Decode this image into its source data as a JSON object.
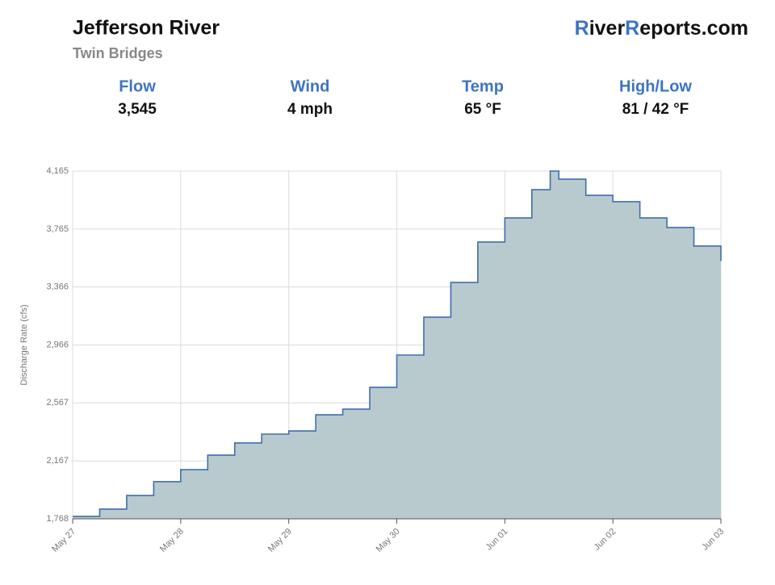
{
  "header": {
    "title": "Jefferson River",
    "subtitle": "Twin Bridges",
    "logo": [
      "R",
      "iver",
      "R",
      "eports.com"
    ]
  },
  "stats": [
    {
      "label": "Flow",
      "value": "3,545"
    },
    {
      "label": "Wind",
      "value": "4 mph"
    },
    {
      "label": "Temp",
      "value": "65 °F"
    },
    {
      "label": "High/Low",
      "value": "81 / 42 °F"
    }
  ],
  "chart_data": {
    "type": "line",
    "line_shape": "step",
    "y_label": "Discharge Rate (cfs)",
    "x": [
      0,
      0.25,
      0.5,
      0.75,
      1,
      1.25,
      1.5,
      1.75,
      2,
      2.25,
      2.5,
      2.75,
      3,
      3.25,
      3.5,
      3.75,
      4,
      4.25,
      4.42,
      4.5,
      4.75,
      5,
      5.25,
      5.5,
      5.75,
      6
    ],
    "series": [
      {
        "name": "Discharge",
        "color": "#3d6fb0",
        "fill": "#b8cace",
        "values": [
          1785,
          1835,
          1929,
          2024,
          2107,
          2207,
          2291,
          2352,
          2374,
          2485,
          2524,
          2674,
          2897,
          3158,
          3397,
          3676,
          3842,
          4037,
          4165,
          4109,
          3998,
          3954,
          3842,
          3776,
          3648,
          3545
        ]
      }
    ],
    "xlim": [
      0,
      6
    ],
    "xticks": [
      {
        "value": 0,
        "label": "May 27"
      },
      {
        "value": 1,
        "label": "May 28"
      },
      {
        "value": 2,
        "label": "May 29"
      },
      {
        "value": 3,
        "label": "May 30"
      },
      {
        "value": 4,
        "label": "Jun 01"
      },
      {
        "value": 5,
        "label": "Jun 02"
      },
      {
        "value": 6,
        "label": "Jun 03"
      }
    ],
    "ylim": [
      1768,
      4165
    ],
    "yticks": [
      {
        "value": 1768,
        "label": "1,768"
      },
      {
        "value": 2167,
        "label": "2,167"
      },
      {
        "value": 2567,
        "label": "2,567"
      },
      {
        "value": 2966,
        "label": "2,966"
      },
      {
        "value": 3366,
        "label": "3,366"
      },
      {
        "value": 3765,
        "label": "3,765"
      },
      {
        "value": 4165,
        "label": "4,165"
      }
    ],
    "grid": true
  }
}
